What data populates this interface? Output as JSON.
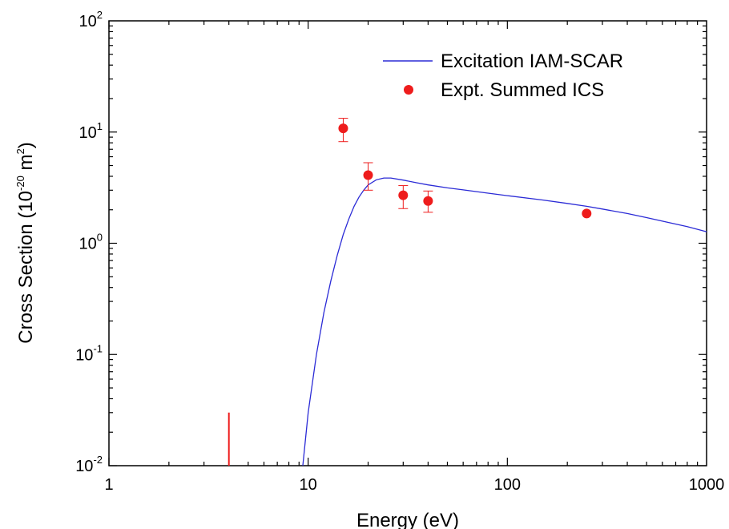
{
  "chart_data": {
    "type": "line",
    "xlabel": "Energy (eV)",
    "ylabel_text": "Cross Section (10",
    "ylabel_exp": "-20",
    "ylabel_unit": " m",
    "ylabel_unit_exp": "2",
    "ylabel_close": ")",
    "x_scale": "log",
    "y_scale": "log",
    "xlim": [
      1,
      1000
    ],
    "ylim": [
      0.01,
      100
    ],
    "grid": false,
    "legend_position": "top-right",
    "x_ticks": [
      {
        "value": 1,
        "label": "1"
      },
      {
        "value": 10,
        "label": "10"
      },
      {
        "value": 100,
        "label": "100"
      },
      {
        "value": 1000,
        "label": "1000"
      }
    ],
    "y_ticks": [
      {
        "value": 0.01,
        "base": "10",
        "exp": "-2"
      },
      {
        "value": 0.1,
        "base": "10",
        "exp": "-1"
      },
      {
        "value": 1,
        "base": "10",
        "exp": "0"
      },
      {
        "value": 10,
        "base": "10",
        "exp": "1"
      },
      {
        "value": 100,
        "base": "10",
        "exp": "2"
      }
    ],
    "series": [
      {
        "name": "Excitation IAM-SCAR",
        "kind": "line",
        "color": "#2b2bd6",
        "x": [
          9.4,
          10,
          11,
          12,
          13,
          14,
          15,
          16,
          17,
          18,
          19,
          20,
          22,
          24,
          26,
          30,
          35,
          40,
          50,
          60,
          80,
          100,
          150,
          200,
          250,
          300,
          400,
          500,
          600,
          800,
          1000
        ],
        "y": [
          0.01,
          0.03,
          0.1,
          0.24,
          0.46,
          0.78,
          1.2,
          1.65,
          2.15,
          2.6,
          3.0,
          3.35,
          3.72,
          3.86,
          3.86,
          3.7,
          3.5,
          3.35,
          3.15,
          3.02,
          2.82,
          2.68,
          2.45,
          2.28,
          2.15,
          2.03,
          1.85,
          1.7,
          1.58,
          1.41,
          1.27
        ]
      },
      {
        "name": "Expt. Summed ICS",
        "kind": "scatter",
        "color": "#ee1c1c",
        "x": [
          15,
          20,
          30,
          40,
          250
        ],
        "y": [
          10.8,
          4.1,
          2.7,
          2.4,
          1.85
        ],
        "y_err_low": [
          8.2,
          3.0,
          2.05,
          1.9,
          1.85
        ],
        "y_err_high": [
          13.3,
          5.3,
          3.3,
          2.95,
          1.85
        ]
      }
    ],
    "threshold_marker": {
      "color": "#ee1c1c",
      "x": 4,
      "y_low": 0.01,
      "y_high": 0.03
    }
  }
}
